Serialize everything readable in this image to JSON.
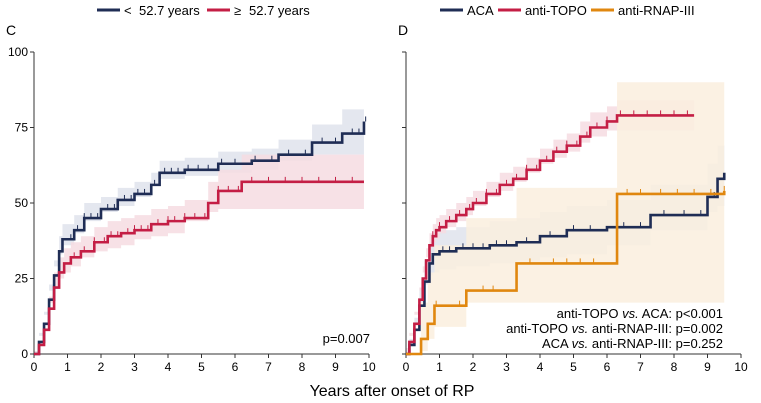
{
  "colors": {
    "navy": "#1f2d55",
    "crimson": "#c41e45",
    "orange": "#e0870f",
    "navy_band": "#dfe3ec",
    "crimson_band": "#f6dce2",
    "orange_band": "#faeede",
    "axis": "#333333"
  },
  "shared_xlabel": "Years after onset of RP",
  "chart_data": [
    {
      "panel": "C",
      "type": "line",
      "step": true,
      "xlabel": "Years after onset of RP",
      "ylabel": "",
      "xlim": [
        0,
        10
      ],
      "ylim": [
        0,
        100
      ],
      "xticks": [
        0,
        1,
        2,
        3,
        4,
        5,
        6,
        7,
        8,
        9,
        10
      ],
      "yticks": [
        0,
        25,
        50,
        75,
        100
      ],
      "legend_position": "top",
      "annotations": [
        "p=0.007"
      ],
      "series": [
        {
          "name": "< 52.7 years",
          "legend_symbol": "<",
          "legend_text": "52.7 years",
          "color": "navy",
          "band_color": "navy_band",
          "x": [
            0,
            0.15,
            0.3,
            0.45,
            0.6,
            0.75,
            0.85,
            1.2,
            1.5,
            2.0,
            2.5,
            3.0,
            3.5,
            3.75,
            4.5,
            5.5,
            6.5,
            7.3,
            8.3,
            9.2,
            9.85
          ],
          "values": [
            0,
            4,
            10,
            18,
            26,
            34,
            38,
            41,
            45,
            48,
            51,
            53,
            56,
            60,
            61,
            63,
            64,
            66,
            70,
            73,
            77
          ],
          "lower": [
            0,
            1,
            6,
            13,
            21,
            29,
            33,
            36,
            40,
            44,
            47,
            49,
            52,
            56,
            58,
            59,
            60,
            61,
            64,
            66,
            66
          ],
          "upper": [
            0,
            7,
            14,
            23,
            31,
            39,
            43,
            46,
            50,
            52,
            55,
            57,
            60,
            64,
            65,
            67,
            68,
            71,
            76,
            81,
            87
          ],
          "censor_x": [
            1.1,
            1.3,
            1.5,
            1.7,
            1.9,
            2.2,
            2.4,
            2.7,
            2.9,
            3.1,
            3.3,
            3.6,
            3.9,
            4.1,
            4.3,
            4.6,
            4.9,
            5.2,
            5.6,
            6.0,
            6.6,
            7.1,
            7.6,
            8.1,
            8.6,
            9.0,
            9.5,
            9.7,
            9.9
          ]
        },
        {
          "name": "≥ 52.7 years",
          "legend_symbol": "≥",
          "legend_text": "52.7 years",
          "color": "crimson",
          "band_color": "crimson_band",
          "x": [
            0,
            0.15,
            0.3,
            0.45,
            0.6,
            0.75,
            0.9,
            1.1,
            1.4,
            1.8,
            2.2,
            2.6,
            3.0,
            3.5,
            4.0,
            4.5,
            5.2,
            5.5,
            6.2,
            9.85
          ],
          "values": [
            0,
            3,
            8,
            15,
            22,
            27,
            30,
            32,
            34,
            37,
            39,
            40,
            41,
            43,
            44,
            45,
            50,
            54,
            57,
            57
          ],
          "lower": [
            0,
            1,
            5,
            11,
            17,
            22,
            25,
            27,
            29,
            32,
            34,
            35,
            36,
            38,
            39,
            40,
            44,
            47,
            48,
            48
          ],
          "upper": [
            0,
            5,
            11,
            19,
            27,
            32,
            35,
            37,
            39,
            42,
            44,
            45,
            46,
            48,
            49,
            51,
            57,
            61,
            66,
            66
          ],
          "censor_x": [
            1.2,
            1.5,
            1.8,
            2.1,
            2.3,
            2.5,
            2.8,
            3.0,
            3.2,
            3.4,
            3.7,
            4.0,
            4.2,
            4.5,
            4.8,
            5.1,
            5.5,
            5.8,
            6.1,
            6.5,
            7.0,
            7.5,
            8.0,
            8.5,
            9.0,
            9.5
          ]
        }
      ]
    },
    {
      "panel": "D",
      "type": "line",
      "step": true,
      "xlabel": "Years after onset of RP",
      "ylabel": "",
      "xlim": [
        0,
        10
      ],
      "ylim": [
        0,
        100
      ],
      "xticks": [
        0,
        1,
        2,
        3,
        4,
        5,
        6,
        7,
        8,
        9,
        10
      ],
      "yticks": [
        0,
        25,
        50,
        75,
        100
      ],
      "legend_position": "top",
      "annotations": [
        {
          "prefix": "anti-TOPO ",
          "italic": "vs.",
          "suffix": " ACA: p<0.001"
        },
        {
          "prefix": "anti-TOPO ",
          "italic": "vs.",
          "suffix": " anti-RNAP-III: p=0.002"
        },
        {
          "prefix": "ACA ",
          "italic": "vs.",
          "suffix": " anti-RNAP-III: p=0.252"
        }
      ],
      "series": [
        {
          "name": "ACA",
          "color": "navy",
          "band_color": "navy_band",
          "x": [
            0,
            0.1,
            0.25,
            0.4,
            0.55,
            0.7,
            0.8,
            1.0,
            1.5,
            2.5,
            3.3,
            4.0,
            4.8,
            6.0,
            7.3,
            9.0,
            9.3,
            9.5
          ],
          "values": [
            0,
            3,
            8,
            16,
            24,
            30,
            33,
            34,
            35,
            36,
            37,
            39,
            41,
            42,
            46,
            52,
            58,
            60
          ],
          "lower": [
            0,
            1,
            4,
            10,
            17,
            23,
            26,
            27,
            28,
            29,
            30,
            31,
            32,
            33,
            36,
            41,
            47,
            49
          ],
          "upper": [
            0,
            5,
            12,
            22,
            31,
            37,
            40,
            41,
            42,
            44,
            45,
            47,
            49,
            51,
            56,
            63,
            69,
            71
          ],
          "censor_x": [
            1.1,
            1.3,
            1.7,
            2.0,
            2.3,
            2.7,
            3.0,
            3.6,
            4.3,
            5.0,
            5.5,
            6.5,
            7.0,
            7.7,
            8.3,
            8.8,
            9.2
          ]
        },
        {
          "name": "anti-TOPO",
          "color": "crimson",
          "band_color": "crimson_band",
          "x": [
            0,
            0.1,
            0.25,
            0.4,
            0.5,
            0.6,
            0.7,
            0.8,
            0.9,
            1.0,
            1.2,
            1.5,
            1.8,
            2.0,
            2.4,
            2.8,
            3.2,
            3.6,
            4.0,
            4.4,
            4.8,
            5.2,
            5.5,
            6.0,
            6.3,
            8.6
          ],
          "values": [
            0,
            4,
            10,
            18,
            25,
            31,
            36,
            39,
            41,
            42,
            44,
            46,
            48,
            50,
            53,
            56,
            58,
            61,
            64,
            67,
            69,
            72,
            75,
            77,
            79,
            79
          ],
          "lower": [
            0,
            2,
            7,
            14,
            21,
            27,
            32,
            35,
            37,
            38,
            40,
            42,
            44,
            46,
            49,
            52,
            54,
            57,
            60,
            63,
            65,
            67,
            70,
            72,
            74,
            74
          ],
          "upper": [
            0,
            6,
            13,
            22,
            29,
            35,
            40,
            43,
            45,
            46,
            48,
            50,
            52,
            54,
            57,
            60,
            62,
            65,
            68,
            71,
            73,
            77,
            80,
            82,
            84,
            84
          ],
          "censor_x": [
            0.8,
            1.0,
            1.3,
            1.6,
            1.9,
            2.1,
            2.4,
            2.7,
            3.0,
            3.3,
            3.6,
            3.9,
            4.2,
            4.5,
            4.8,
            5.1,
            5.4,
            5.7,
            6.0,
            6.4,
            6.8,
            7.2,
            7.6,
            8.0,
            8.4
          ]
        },
        {
          "name": "anti-RNAP-III",
          "color": "orange",
          "band_color": "orange_band",
          "x": [
            0,
            0.45,
            0.65,
            0.85,
            1.8,
            3.3,
            6.3,
            9.5
          ],
          "values": [
            0,
            5,
            10,
            16,
            21,
            30,
            53,
            54
          ],
          "lower": [
            0,
            0,
            1,
            5,
            9,
            17,
            17,
            17
          ],
          "upper": [
            0,
            17,
            27,
            36,
            45,
            55,
            90,
            90
          ],
          "censor_x": [
            0.9,
            1.6,
            2.3,
            2.6,
            3.7,
            4.4,
            4.8,
            5.2,
            5.6,
            6.6,
            7.0,
            7.6,
            8.1,
            8.6,
            9.1,
            9.5
          ]
        }
      ]
    }
  ]
}
